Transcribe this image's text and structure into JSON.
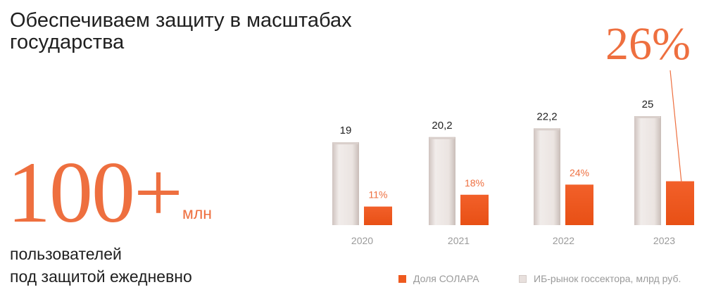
{
  "header": {
    "title_line1": "Обеспечиваем защиту в масштабах",
    "title_line2": "государства"
  },
  "kpi": {
    "value": "100+",
    "unit": "млн",
    "desc_line1": "пользователей",
    "desc_line2": "под защитой ежедневно"
  },
  "highlight": "26%",
  "colors": {
    "accent": "#ee6f3f",
    "solar_bar": "#ee5a1f",
    "market_bar": "#e8e0dd",
    "text": "#1f1f1f",
    "muted": "#9a9a9a"
  },
  "chart_data": {
    "type": "bar",
    "categories": [
      "2020",
      "2021",
      "2022",
      "2023"
    ],
    "series": [
      {
        "name": "ИБ-рынок госсектора, млрд руб.",
        "values": [
          19,
          20.2,
          22.2,
          25
        ],
        "labels": [
          "19",
          "20,2",
          "22,2",
          "25"
        ]
      },
      {
        "name": "Доля СОЛАРА",
        "values": [
          11,
          18,
          24,
          26
        ],
        "labels": [
          "11%",
          "18%",
          "24%",
          ""
        ]
      }
    ],
    "legend_position": "bottom-right",
    "grid": false
  }
}
